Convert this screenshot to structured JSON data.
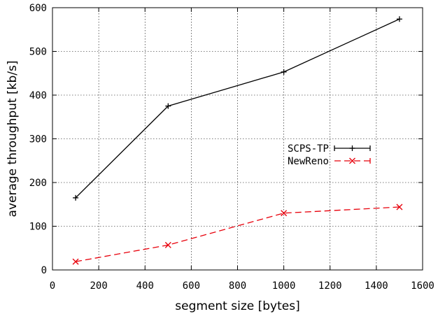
{
  "chart_data": {
    "type": "line",
    "title": "",
    "xlabel": "segment size [bytes]",
    "ylabel": "average throughput [kb/s]",
    "xlim": [
      0,
      1600
    ],
    "ylim": [
      0,
      600
    ],
    "x_ticks": [
      "0",
      "200",
      "400",
      "600",
      "800",
      "1000",
      "1200",
      "1400",
      "1600"
    ],
    "y_ticks": [
      "0",
      "100",
      "200",
      "300",
      "400",
      "500",
      "600"
    ],
    "grid": true,
    "legend_position": "center-right",
    "series": [
      {
        "name": "SCPS-TP",
        "color": "#000000",
        "line_style": "solid",
        "marker": "plus",
        "x": [
          100,
          500,
          1000,
          1500
        ],
        "y": [
          165,
          375,
          453,
          574
        ]
      },
      {
        "name": "NewReno",
        "color": "#e8000b",
        "line_style": "dashed",
        "marker": "x",
        "x": [
          100,
          500,
          1000,
          1500
        ],
        "y": [
          19,
          57,
          130,
          144
        ]
      }
    ]
  }
}
